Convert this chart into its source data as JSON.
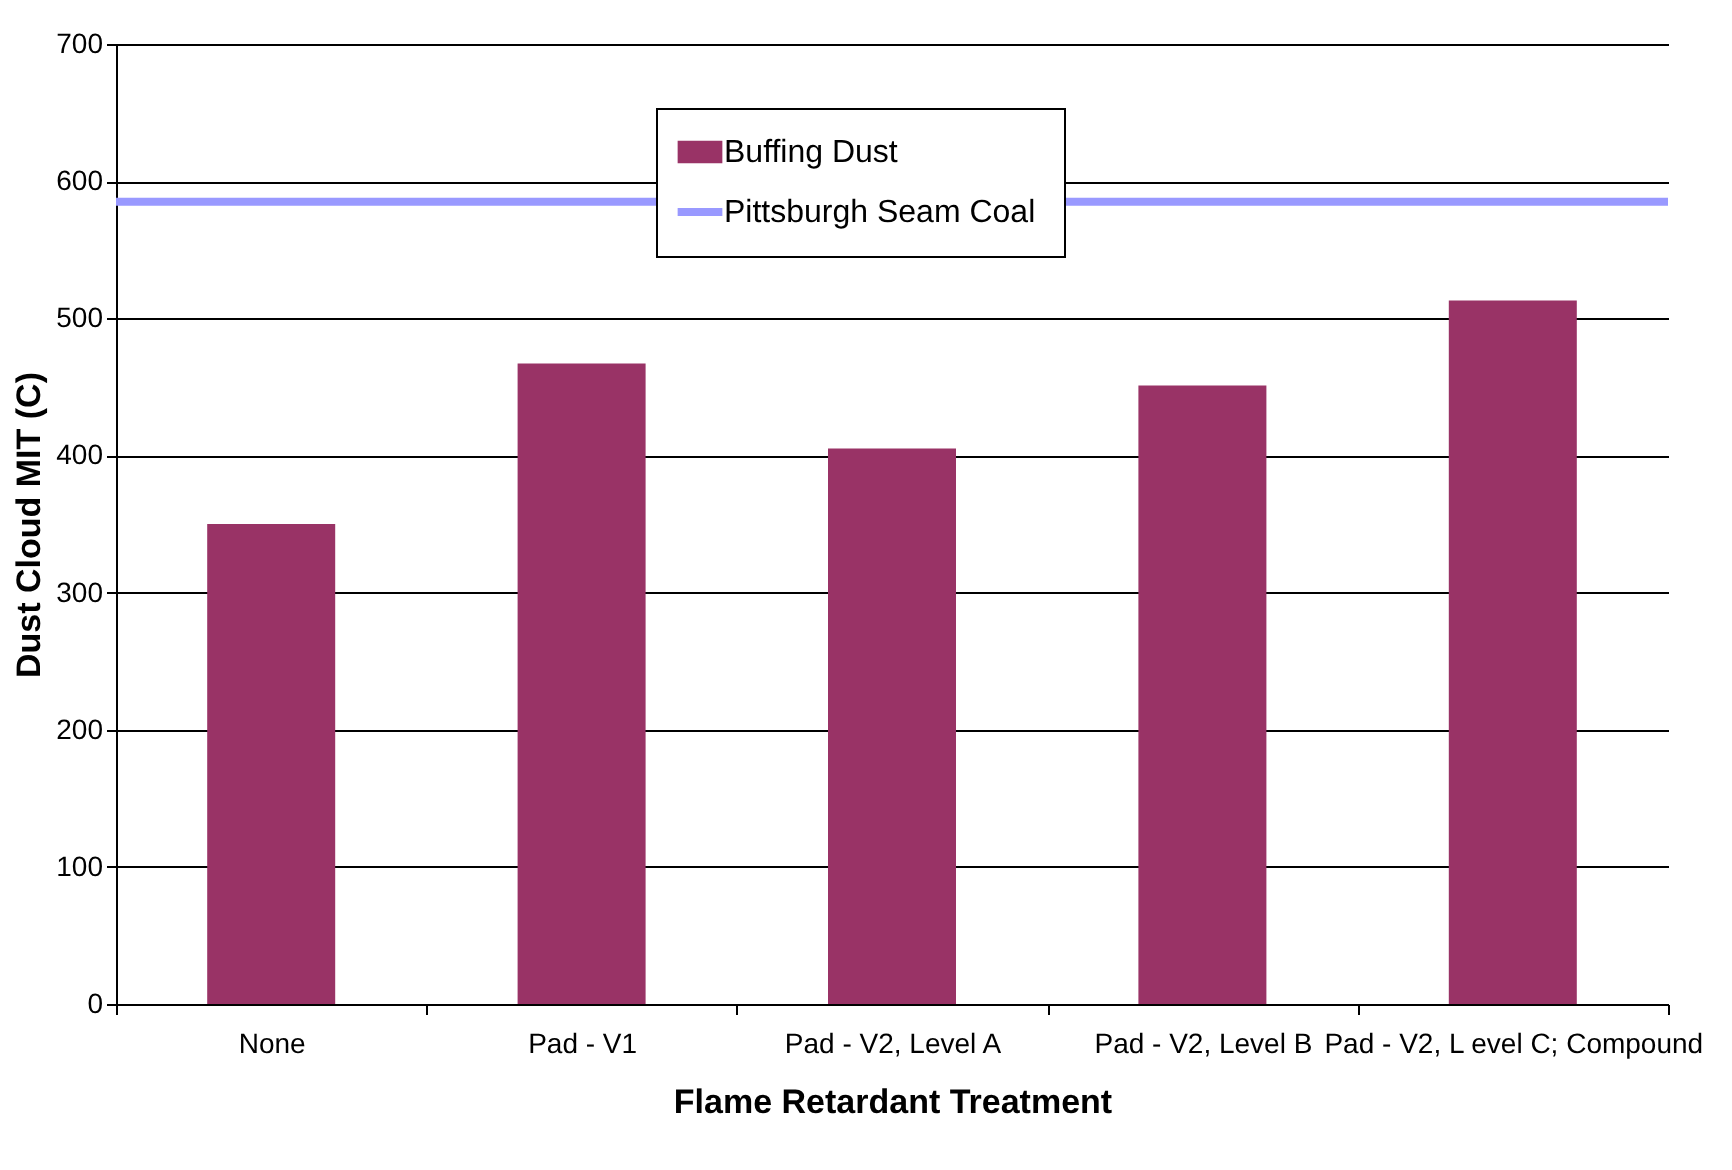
{
  "chart_data": {
    "type": "bar",
    "xlabel": "Flame Retardant Treatment",
    "ylabel": "Dust Cloud MIT (C)",
    "categories": [
      "None",
      "Pad - V1",
      "Pad - V2, Level A",
      "Pad - V2, Level B",
      "Pad - V2, L evel C;\nCompound"
    ],
    "series": [
      {
        "name": "Buffing Dust",
        "color": "#993366",
        "values": [
          350,
          467,
          405,
          451,
          513
        ]
      }
    ],
    "ref_lines": [
      {
        "axis": "y",
        "value": 585,
        "label": "Pittsburgh Seam Coal",
        "color": "#9999ff"
      }
    ],
    "ylim": [
      0,
      700
    ],
    "yticks": [
      0,
      100,
      200,
      300,
      400,
      500,
      600,
      700
    ],
    "grid": "y",
    "legend": "top"
  }
}
